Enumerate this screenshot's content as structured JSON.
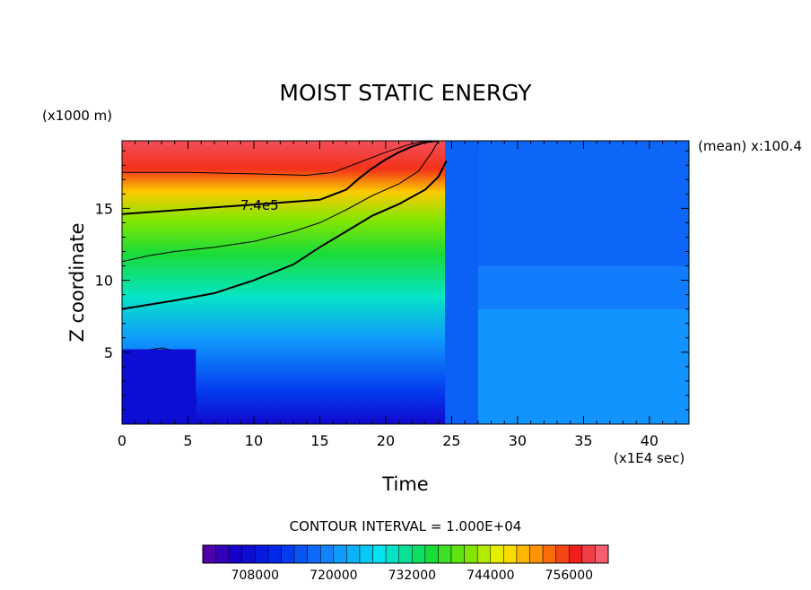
{
  "chart_data": {
    "type": "heatmap",
    "title": "MOIST STATIC ENERGY",
    "xlabel": "Time",
    "ylabel": "Z coordinate",
    "x_unit": "(x1E4 sec)",
    "y_unit": "(x1000 m)",
    "side_note": "(mean) x:100.4",
    "xlim": [
      0,
      43
    ],
    "ylim": [
      0,
      19.7
    ],
    "x_ticks": [
      0,
      5,
      10,
      15,
      20,
      25,
      30,
      35,
      40
    ],
    "y_ticks": [
      5,
      10,
      15
    ],
    "contour_interval_text": "CONTOUR INTERVAL = 1.000E+04",
    "contour_label": "7.4e5",
    "colorbar": {
      "min": 700000,
      "max": 762000,
      "step": 2000,
      "labels": [
        "708000",
        "720000",
        "732000",
        "744000",
        "756000"
      ],
      "label_values": [
        708000,
        720000,
        732000,
        744000,
        756000
      ]
    },
    "contours": [
      {
        "level": 760000,
        "points": [
          [
            0,
            17.5
          ],
          [
            5,
            17.5
          ],
          [
            10,
            17.4
          ],
          [
            14,
            17.3
          ],
          [
            16,
            17.5
          ],
          [
            18,
            18.2
          ],
          [
            20,
            18.9
          ],
          [
            22,
            19.5
          ],
          [
            23,
            19.7
          ]
        ]
      },
      {
        "level": 740000,
        "label": "7.4e5",
        "points": [
          [
            0,
            14.6
          ],
          [
            3,
            14.8
          ],
          [
            6,
            15.0
          ],
          [
            9,
            15.2
          ],
          [
            12,
            15.4
          ],
          [
            15,
            15.6
          ],
          [
            17,
            16.3
          ],
          [
            18,
            17.1
          ],
          [
            19,
            17.8
          ],
          [
            20,
            18.4
          ],
          [
            21,
            18.9
          ],
          [
            22,
            19.3
          ],
          [
            23,
            19.6
          ],
          [
            24,
            19.7
          ]
        ]
      },
      {
        "level": 730000,
        "points": [
          [
            0,
            11.3
          ],
          [
            2,
            11.7
          ],
          [
            4,
            12.0
          ],
          [
            7,
            12.3
          ],
          [
            10,
            12.7
          ],
          [
            13,
            13.4
          ],
          [
            15,
            14.0
          ],
          [
            17,
            14.9
          ],
          [
            19,
            15.9
          ],
          [
            21,
            16.7
          ],
          [
            22.5,
            17.6
          ],
          [
            23.5,
            18.9
          ],
          [
            24,
            19.7
          ]
        ]
      },
      {
        "level": 720000,
        "points": [
          [
            0,
            8.0
          ],
          [
            2,
            8.3
          ],
          [
            4,
            8.6
          ],
          [
            7,
            9.1
          ],
          [
            10,
            10.0
          ],
          [
            13,
            11.1
          ],
          [
            15,
            12.3
          ],
          [
            17,
            13.4
          ],
          [
            19,
            14.5
          ],
          [
            21,
            15.3
          ],
          [
            23,
            16.3
          ],
          [
            24,
            17.2
          ],
          [
            24.6,
            18.3
          ]
        ]
      },
      {
        "level": 710000,
        "points": [
          [
            0,
            4.8
          ],
          [
            1.5,
            5.1
          ],
          [
            3,
            5.3
          ],
          [
            4.5,
            5.0
          ],
          [
            5.3,
            4.5
          ],
          [
            5.5,
            3.0
          ],
          [
            5.6,
            1.5
          ],
          [
            5.4,
            0
          ]
        ]
      }
    ]
  }
}
